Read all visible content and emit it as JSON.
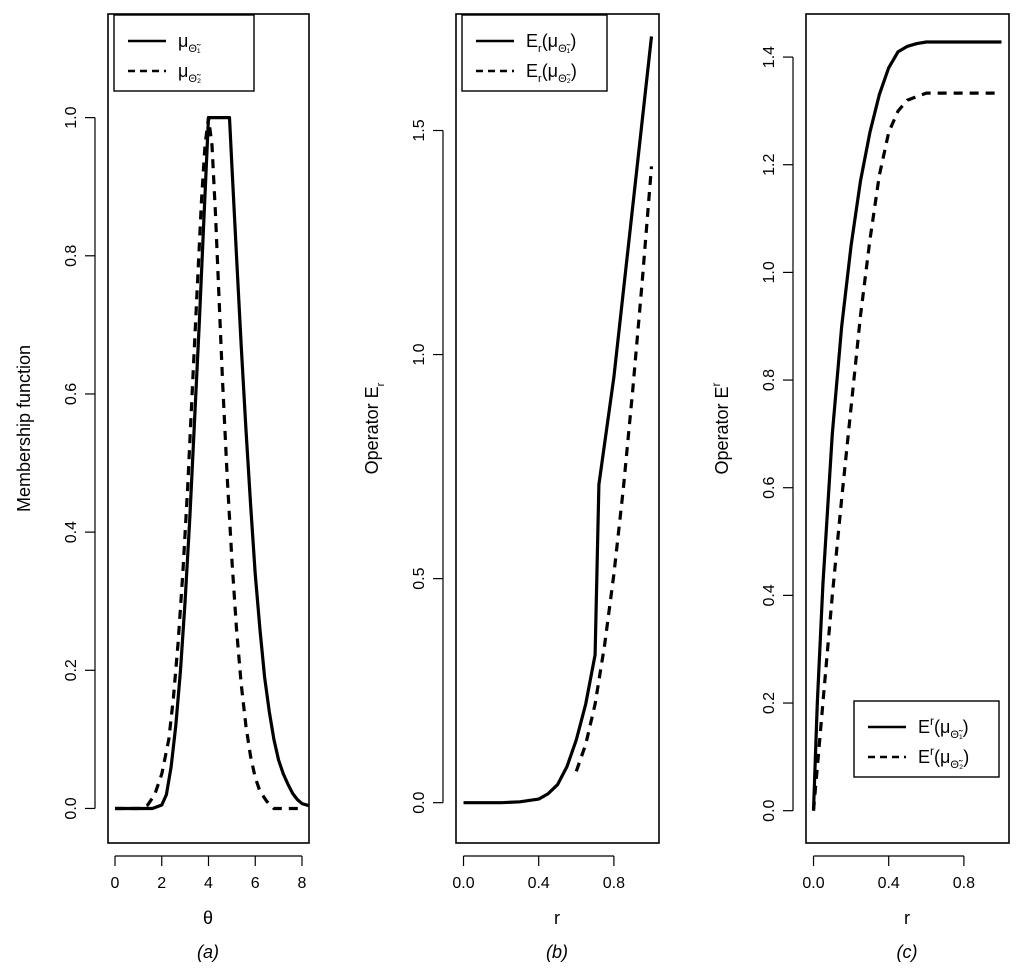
{
  "chart_data": [
    {
      "type": "line",
      "caption": "(a)",
      "xlabel": "θ",
      "ylabel": "Membership function",
      "xlim": [
        -0.3,
        8.3
      ],
      "ylim": [
        -0.05,
        1.15
      ],
      "xticks": [
        0,
        2,
        4,
        6,
        8
      ],
      "xtick_labels": [
        "0",
        "2",
        "4",
        "6",
        "8"
      ],
      "yticks": [
        0.0,
        0.2,
        0.4,
        0.6,
        0.8,
        1.0
      ],
      "ytick_labels": [
        "0.0",
        "0.2",
        "0.4",
        "0.6",
        "0.8",
        "1.0"
      ],
      "legend_position": "top-left",
      "series": [
        {
          "name": "μΘ̃1",
          "legend": {
            "base": "μ",
            "sub": "Θ̃₁"
          },
          "style": "solid",
          "x": [
            0,
            1.0,
            1.6,
            2.0,
            2.2,
            2.4,
            2.6,
            2.8,
            3.0,
            3.2,
            3.4,
            3.6,
            3.8,
            4.0,
            4.9,
            5.0,
            5.2,
            5.4,
            5.6,
            5.8,
            6.0,
            6.2,
            6.4,
            6.6,
            6.8,
            7.0,
            7.2,
            7.4,
            7.6,
            7.8,
            8.0,
            8.3
          ],
          "y": [
            0,
            0,
            0,
            0.005,
            0.02,
            0.06,
            0.12,
            0.2,
            0.3,
            0.42,
            0.56,
            0.7,
            0.85,
            1.0,
            1.0,
            0.93,
            0.8,
            0.67,
            0.55,
            0.44,
            0.34,
            0.26,
            0.19,
            0.14,
            0.1,
            0.07,
            0.05,
            0.035,
            0.022,
            0.013,
            0.007,
            0.004
          ]
        },
        {
          "name": "μΘ̃2",
          "legend": {
            "base": "μ",
            "sub": "Θ̃₂"
          },
          "style": "dashed",
          "x": [
            0,
            1.0,
            1.4,
            1.7,
            2.0,
            2.3,
            2.5,
            2.7,
            2.9,
            3.1,
            3.3,
            3.5,
            3.7,
            3.85,
            4.0,
            4.15,
            4.3,
            4.45,
            4.6,
            4.8,
            5.0,
            5.2,
            5.4,
            5.6,
            5.8,
            6.0,
            6.2,
            6.5,
            6.8,
            7.5,
            8.0
          ],
          "y": [
            0,
            0,
            0.005,
            0.02,
            0.05,
            0.1,
            0.16,
            0.24,
            0.34,
            0.46,
            0.6,
            0.74,
            0.88,
            0.96,
            1.0,
            0.96,
            0.86,
            0.74,
            0.62,
            0.48,
            0.36,
            0.26,
            0.18,
            0.12,
            0.075,
            0.045,
            0.025,
            0.01,
            0,
            0,
            0
          ]
        }
      ]
    },
    {
      "type": "line",
      "caption": "(b)",
      "xlabel": "r",
      "ylabel": {
        "base": "Operator  E",
        "sub": "r"
      },
      "xlim": [
        -0.04,
        1.04
      ],
      "ylim": [
        -0.09,
        1.76
      ],
      "xticks": [
        0.0,
        0.4,
        0.8
      ],
      "xtick_labels": [
        "0.0",
        "0.4",
        "0.8"
      ],
      "yticks": [
        0.0,
        0.5,
        1.0,
        1.5
      ],
      "ytick_labels": [
        "0.0",
        "0.5",
        "1.0",
        "1.5"
      ],
      "legend_position": "top-left",
      "series": [
        {
          "name": "Er(μΘ̃1)",
          "legend": {
            "base": "E",
            "sub_r": "r",
            "rest": "(μ",
            "sub": "Θ̃₁",
            "close": ")"
          },
          "style": "solid",
          "x": [
            0,
            0.2,
            0.3,
            0.4,
            0.45,
            0.5,
            0.55,
            0.6,
            0.65,
            0.7,
            0.72,
            0.8,
            0.9,
            1.0
          ],
          "y": [
            0,
            0,
            0.002,
            0.008,
            0.02,
            0.04,
            0.08,
            0.14,
            0.22,
            0.33,
            0.71,
            0.95,
            1.33,
            1.71
          ]
        },
        {
          "name": "Er(μΘ̃2)",
          "legend": {
            "base": "E",
            "sub_r": "r",
            "rest": "(μ",
            "sub": "Θ̃₂",
            "close": ")"
          },
          "style": "dashed",
          "x": [
            0.6,
            0.65,
            0.7,
            0.75,
            0.8,
            0.85,
            0.9,
            0.95,
            1.0
          ],
          "y": [
            0.07,
            0.13,
            0.22,
            0.35,
            0.51,
            0.7,
            0.92,
            1.16,
            1.42
          ]
        }
      ]
    },
    {
      "type": "line",
      "caption": "(c)",
      "xlabel": "r",
      "ylabel": {
        "base": "Operator  E",
        "sup": "r"
      },
      "xlim": [
        -0.04,
        1.04
      ],
      "ylim": [
        -0.06,
        1.48
      ],
      "xticks": [
        0.0,
        0.4,
        0.8
      ],
      "xtick_labels": [
        "0.0",
        "0.4",
        "0.8"
      ],
      "yticks": [
        0.0,
        0.2,
        0.4,
        0.6,
        0.8,
        1.0,
        1.2,
        1.4
      ],
      "ytick_labels": [
        "0.0",
        "0.2",
        "0.4",
        "0.6",
        "0.8",
        "1.0",
        "1.2",
        "1.4"
      ],
      "legend_position": "bottom-right",
      "series": [
        {
          "name": "Er(μΘ̃1)",
          "legend": {
            "base": "E",
            "sup_r": "r",
            "rest": "(μ",
            "sub": "Θ̃₁",
            "close": ")"
          },
          "style": "solid",
          "x": [
            0,
            0.02,
            0.05,
            0.1,
            0.15,
            0.2,
            0.25,
            0.3,
            0.35,
            0.4,
            0.45,
            0.5,
            0.55,
            0.6,
            0.7,
            0.8,
            0.9,
            1.0
          ],
          "y": [
            0,
            0.2,
            0.42,
            0.7,
            0.9,
            1.05,
            1.17,
            1.26,
            1.33,
            1.38,
            1.41,
            1.42,
            1.425,
            1.428,
            1.428,
            1.428,
            1.428,
            1.428
          ]
        },
        {
          "name": "Er(μΘ̃2)",
          "legend": {
            "base": "E",
            "sup_r": "r",
            "rest": "(μ",
            "sub": "Θ̃₂",
            "close": ")"
          },
          "style": "dashed",
          "x": [
            0,
            0.02,
            0.05,
            0.1,
            0.15,
            0.2,
            0.25,
            0.3,
            0.35,
            0.4,
            0.45,
            0.5,
            0.6,
            0.7,
            0.8,
            0.9,
            1.0
          ],
          "y": [
            0,
            0.08,
            0.2,
            0.4,
            0.58,
            0.75,
            0.92,
            1.06,
            1.18,
            1.26,
            1.3,
            1.32,
            1.333,
            1.333,
            1.333,
            1.333,
            1.333
          ]
        }
      ]
    }
  ]
}
